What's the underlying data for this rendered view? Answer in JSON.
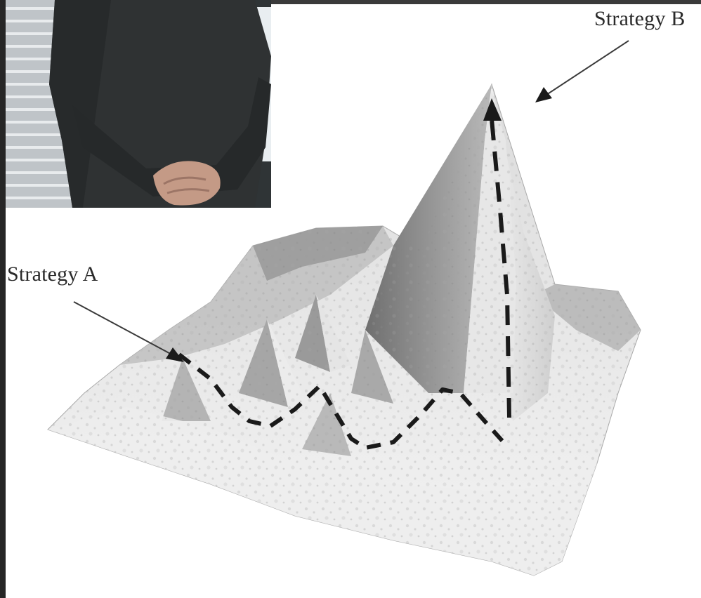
{
  "figure": {
    "labels": {
      "strategy_a": "Strategy A",
      "strategy_b": "Strategy B"
    },
    "inset_photo": {
      "subject": "person in dark sweater with clasped hands"
    },
    "colors": {
      "surface_light": "#f4f4f4",
      "surface_mid": "#c8c8c8",
      "surface_dark": "#7d7d7d",
      "path_dash": "#1a1a1a",
      "sweater": "#2f3233"
    }
  }
}
